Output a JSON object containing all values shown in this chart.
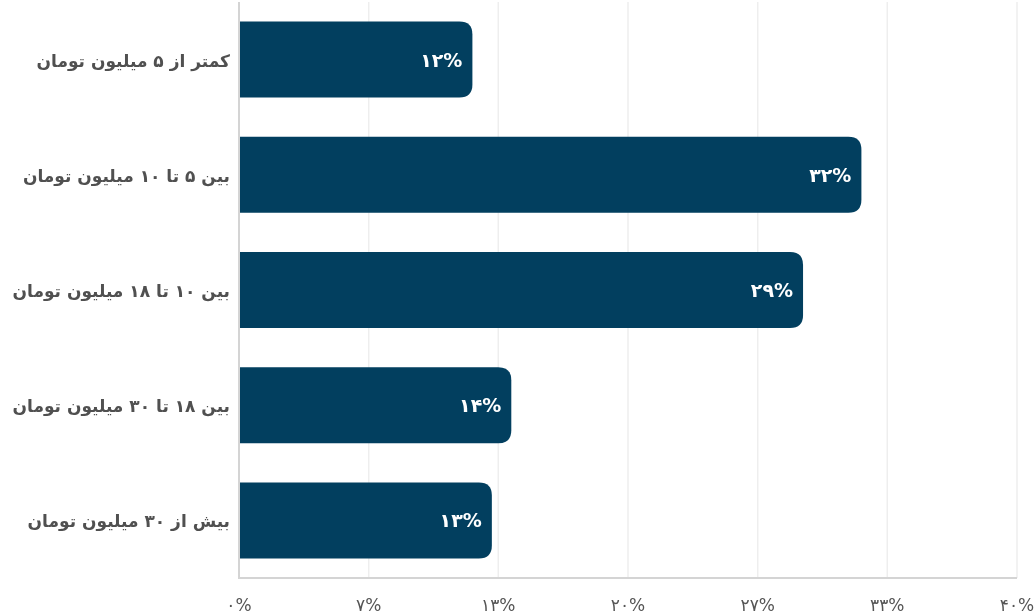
{
  "chart_data": {
    "type": "bar",
    "orientation": "horizontal",
    "categories": [
      "کمتر از ۵ میلیون تومان",
      "بین ۵ تا ۱۰ میلیون تومان",
      "بین ۱۰ تا ۱۸ میلیون تومان",
      "بین ۱۸ تا ۳۰ میلیون تومان",
      "بیش از ۳۰ میلیون تومان"
    ],
    "values": [
      12,
      32,
      29,
      14,
      13
    ],
    "value_labels": [
      "۱۲%",
      "۳۲%",
      "۲۹%",
      "۱۴%",
      "۱۳%"
    ],
    "color": "#023f5f",
    "xlim": [
      0,
      40
    ],
    "xticks": [
      {
        "value": 0,
        "label": "۰%"
      },
      {
        "value": 6.67,
        "label": "۷%"
      },
      {
        "value": 13.33,
        "label": "۱۳%"
      },
      {
        "value": 20,
        "label": "۲۰%"
      },
      {
        "value": 26.67,
        "label": "۲۷%"
      },
      {
        "value": 33.33,
        "label": "۳۳%"
      },
      {
        "value": 40,
        "label": "۴۰%"
      }
    ],
    "grid": "x"
  }
}
